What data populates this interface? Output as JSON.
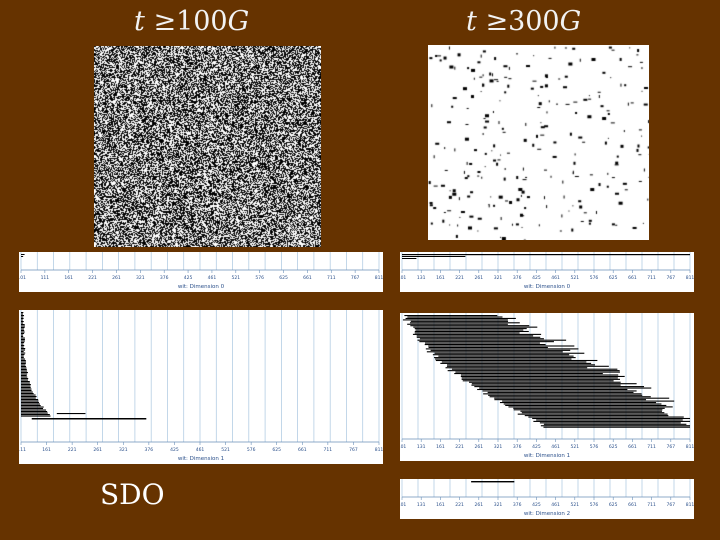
{
  "titles": {
    "left": {
      "var": "t",
      "rel": "≥",
      "value": "100",
      "unit": "G"
    },
    "right": {
      "var": "t",
      "rel": "≥",
      "value": "300",
      "unit": "G"
    }
  },
  "panels": {
    "left_dim0": {
      "axis_label": "wit: Dimension 0",
      "ticks": [
        "0.01",
        "111",
        "161",
        "221",
        "261",
        "321",
        "376",
        "425",
        "461",
        "521",
        "576",
        "625",
        "661",
        "711",
        "767",
        "811"
      ]
    },
    "left_dim1": {
      "axis_label": "wit: Dimension 1",
      "ticks": [
        "0.11",
        "161",
        "221",
        "261",
        "321",
        "376",
        "425",
        "461",
        "521",
        "576",
        "625",
        "661",
        "711",
        "767",
        "811"
      ]
    },
    "right_dim0": {
      "axis_label": "wit: Dimension 0",
      "ticks": [
        "101",
        "131",
        "161",
        "221",
        "261",
        "321",
        "376",
        "425",
        "461",
        "521",
        "576",
        "625",
        "661",
        "711",
        "767",
        "811"
      ]
    },
    "right_dim1": {
      "axis_label": "wit: Dimension 1",
      "ticks": [
        "101",
        "131",
        "161",
        "221",
        "261",
        "321",
        "376",
        "425",
        "461",
        "521",
        "576",
        "625",
        "661",
        "711",
        "767",
        "811"
      ]
    },
    "right_dim2": {
      "axis_label": "wit: Dimension 2",
      "ticks": [
        "101",
        "131",
        "161",
        "221",
        "261",
        "321",
        "376",
        "425",
        "461",
        "521",
        "576",
        "625",
        "661",
        "711",
        "767",
        "811"
      ]
    }
  },
  "footer_label": "SDO",
  "colors": {
    "background": "#663300",
    "bar": "#000000",
    "grid": "#a9c6e0",
    "axis_text": "#2a4f8a"
  }
}
